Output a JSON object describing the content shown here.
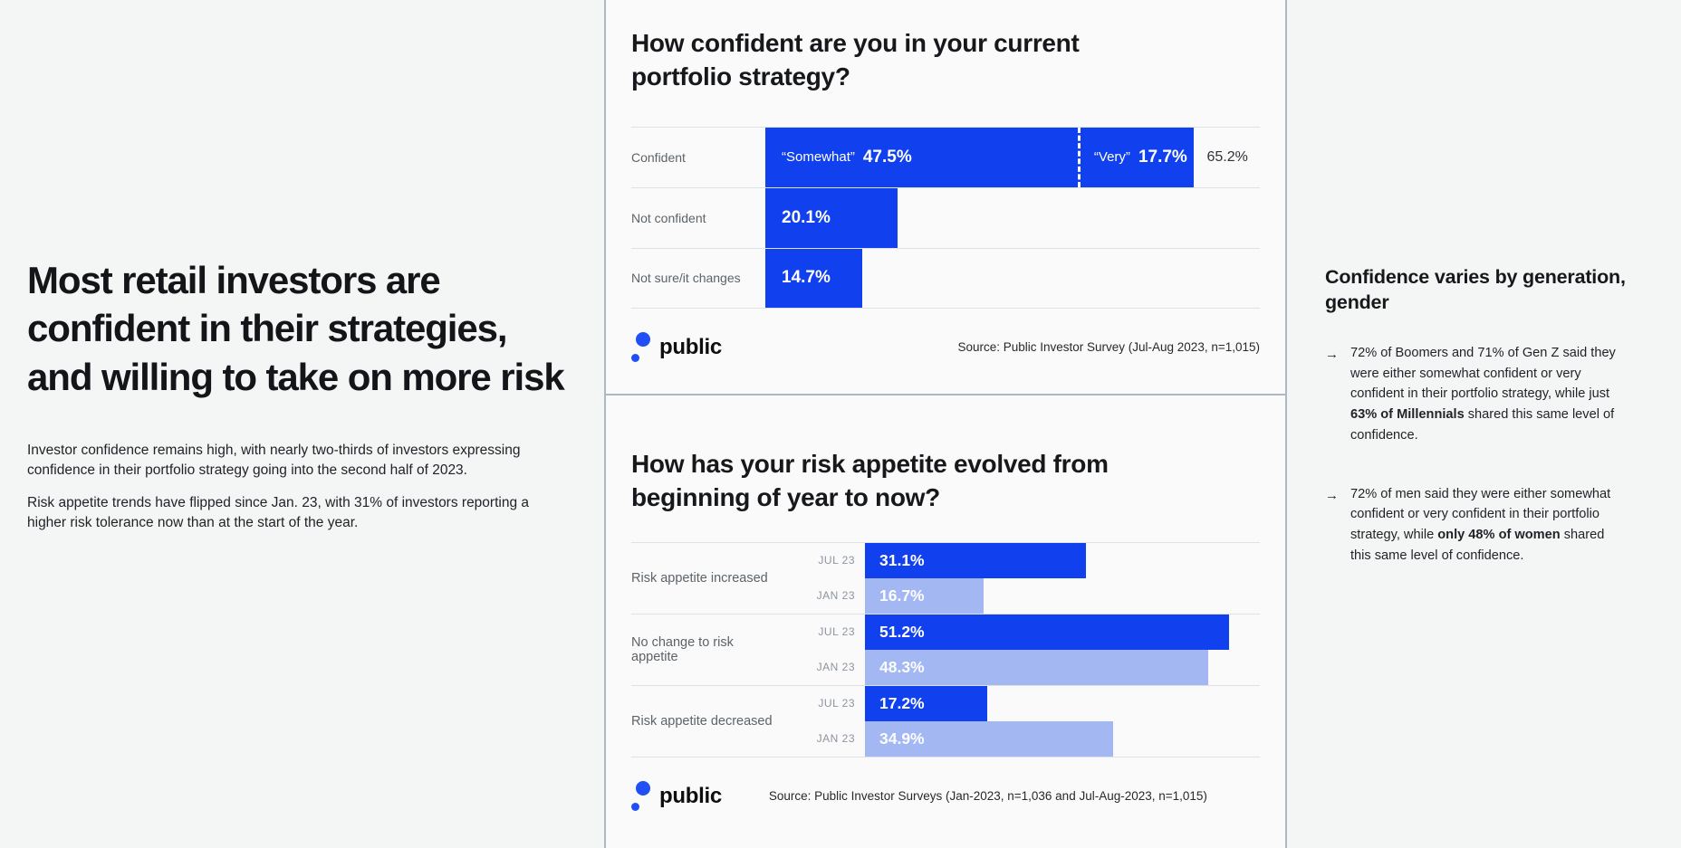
{
  "brand": {
    "name": "public",
    "dot_color": "#2050f3"
  },
  "colors": {
    "bar_primary": "#1141ef",
    "bar_secondary": "#a3b7f3"
  },
  "left_panel": {
    "headline": "Most retail investors are confident in their strategies, and willing to take on more risk",
    "paragraphs": [
      "Investor confidence remains high, with nearly two-thirds of investors expressing confidence in their portfolio strategy going into the second half of 2023.",
      "Risk appetite trends have flipped since Jan. 23, with 31% of investors reporting a higher risk tolerance now than at the start of the year."
    ]
  },
  "chart_data": [
    {
      "type": "bar",
      "orientation": "horizontal",
      "title": "How confident are you in your current portfolio strategy?",
      "categories": [
        "Confident",
        "Not confident",
        "Not sure/it changes"
      ],
      "values": [
        65.2,
        20.1,
        14.7
      ],
      "segments": [
        {
          "label": "“Somewhat”",
          "value": 47.5
        },
        {
          "label": "“Very”",
          "value": 17.7
        }
      ],
      "xlim": [
        0,
        75
      ],
      "grid": "row separators only",
      "legend": "none",
      "bar_color": "#1141ef",
      "source": "Source: Public Investor Survey (Jul-Aug 2023, n=1,015)"
    },
    {
      "type": "bar",
      "orientation": "horizontal",
      "title": "How has your risk appetite evolved from beginning of year to now?",
      "categories": [
        "Risk appetite increased",
        "No change to risk appetite",
        "Risk appetite decreased"
      ],
      "series": [
        {
          "name": "JUL 23",
          "color": "#1141ef",
          "values": [
            31.1,
            51.2,
            17.2
          ]
        },
        {
          "name": "JAN 23",
          "color": "#a3b7f3",
          "values": [
            16.7,
            48.3,
            34.9
          ]
        }
      ],
      "xlim": [
        0,
        55
      ],
      "grid": "row separators only",
      "legend": "inline row labels",
      "source": "Source: Public Investor Surveys (Jan-2023, n=1,036 and Jul-Aug-2023, n=1,015)"
    }
  ],
  "right_panel": {
    "title": "Confidence varies by generation, gender",
    "arrow": "→",
    "bullets": [
      {
        "segments": [
          {
            "text": "72% of Boomers and 71% of Gen Z said they were either somewhat confident or very confident in their portfolio strategy, while just ",
            "bold": false
          },
          {
            "text": "63% of Millennials",
            "bold": true
          },
          {
            "text": " shared this same level of confidence.",
            "bold": false
          }
        ]
      },
      {
        "segments": [
          {
            "text": "72% of men said they were either somewhat confident or very confident in their portfolio strategy, while ",
            "bold": false
          },
          {
            "text": "only 48% of women",
            "bold": true
          },
          {
            "text": " shared this same level of confidence.",
            "bold": false
          }
        ]
      }
    ]
  }
}
